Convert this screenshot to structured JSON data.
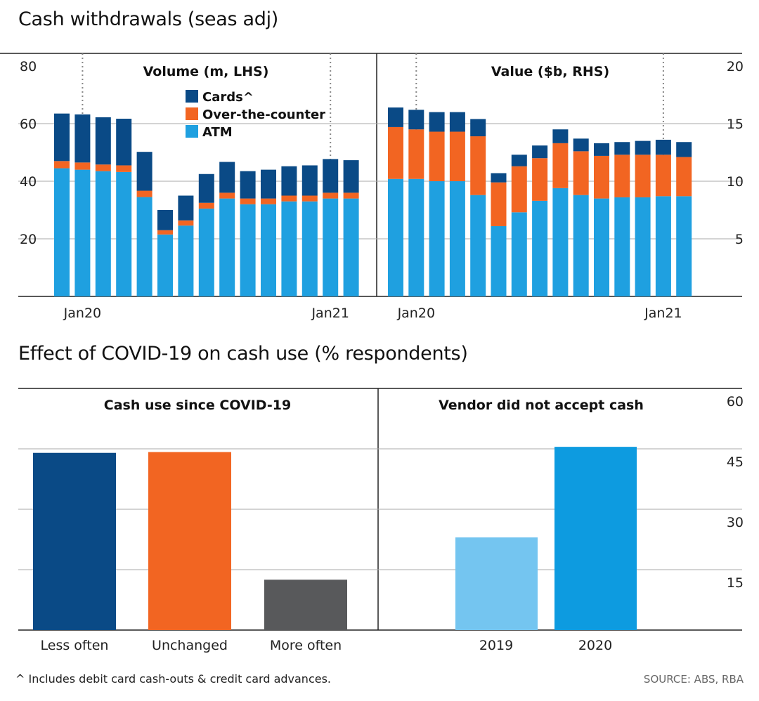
{
  "titles": {
    "top": "Cash withdrawals (seas adj)",
    "bottom": "Effect of COVID-19 on cash use (% respondents)"
  },
  "colors": {
    "cards": "#0a4a86",
    "otc": "#f26522",
    "atm": "#1fa0e0",
    "less_often": "#0a4a86",
    "unchanged": "#f26522",
    "more_often": "#58595b",
    "y2019": "#74c5f0",
    "y2020": "#0d9be0"
  },
  "chart_data": [
    {
      "id": "volume",
      "type": "bar",
      "stacked": true,
      "title": "Volume (m, LHS)",
      "ylim": [
        0,
        80
      ],
      "yticks": [
        20,
        40,
        60,
        80
      ],
      "xticks": [
        {
          "label": "Jan20",
          "index": 1.5
        },
        {
          "label": "Jan21",
          "index": 13.5
        }
      ],
      "legend": [
        "Cards^",
        "Over-the-counter",
        "ATM"
      ],
      "series": [
        {
          "name": "ATM",
          "values": [
            44.5,
            44,
            43.5,
            43.2,
            34.5,
            21.5,
            24.6,
            30.5,
            34,
            32,
            32,
            33,
            33,
            34,
            34
          ]
        },
        {
          "name": "Over-the-counter",
          "values": [
            2.5,
            2.5,
            2.3,
            2.3,
            2.2,
            1.5,
            1.8,
            2,
            2,
            2,
            2,
            2,
            2,
            2,
            2
          ]
        },
        {
          "name": "Cards^",
          "values": [
            16.5,
            16.7,
            16.4,
            16.2,
            13.5,
            7,
            8.6,
            10,
            10.7,
            9.5,
            10,
            10.2,
            10.5,
            11.7,
            11.3
          ]
        }
      ]
    },
    {
      "id": "value",
      "type": "bar",
      "stacked": true,
      "title": "Value ($b, RHS)",
      "ylim": [
        0,
        20
      ],
      "yticks": [
        5,
        10,
        15,
        20
      ],
      "xticks": [
        {
          "label": "Jan20",
          "index": 1.5
        },
        {
          "label": "Jan21",
          "index": 13.5
        }
      ],
      "series": [
        {
          "name": "ATM",
          "values": [
            10.2,
            10.2,
            10,
            10,
            8.8,
            6.1,
            7.3,
            8.3,
            9.4,
            8.8,
            8.5,
            8.6,
            8.6,
            8.7,
            8.7
          ]
        },
        {
          "name": "Over-the-counter",
          "values": [
            4.5,
            4.3,
            4.3,
            4.3,
            5.1,
            3.8,
            4,
            3.7,
            3.9,
            3.8,
            3.7,
            3.7,
            3.7,
            3.6,
            3.4
          ]
        },
        {
          "name": "Cards^",
          "values": [
            1.7,
            1.7,
            1.7,
            1.7,
            1.5,
            0.8,
            1,
            1.1,
            1.2,
            1.1,
            1.1,
            1.1,
            1.2,
            1.3,
            1.3
          ]
        }
      ]
    },
    {
      "id": "cash_use",
      "type": "bar",
      "title": "Cash use since COVID-19",
      "categories": [
        "Less often",
        "Unchanged",
        "More often"
      ],
      "values": [
        44,
        44.2,
        12.5
      ],
      "ylim": [
        0,
        60
      ]
    },
    {
      "id": "vendor",
      "type": "bar",
      "title": "Vendor did not accept cash",
      "categories": [
        "2019",
        "2020"
      ],
      "values": [
        23,
        45.5
      ],
      "ylim": [
        0,
        60
      ],
      "yticks": [
        15,
        30,
        45,
        60
      ]
    }
  ],
  "footnote": "^ Includes debit card cash-outs & credit card advances.",
  "source": "SOURCE: ABS, RBA"
}
